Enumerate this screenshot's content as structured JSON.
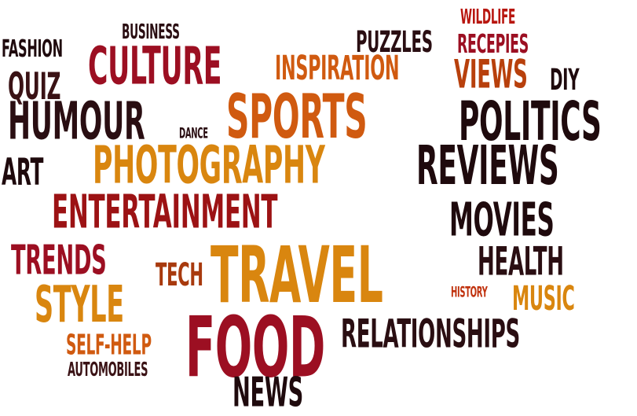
{
  "words": [
    {
      "text": "WILDLIFE",
      "color": "#b8160f"
    },
    {
      "text": "BUSINESS",
      "color": "#2a0e12"
    },
    {
      "text": "PUZZLES",
      "color": "#2a0e12"
    },
    {
      "text": "RECEPIES",
      "color": "#9c0f22"
    },
    {
      "text": "FASHION",
      "color": "#1f0a0d"
    },
    {
      "text": "CULTURE",
      "color": "#9c0f22"
    },
    {
      "text": "INSPIRATION",
      "color": "#d05a10"
    },
    {
      "text": "VIEWS",
      "color": "#b8400c"
    },
    {
      "text": "DIY",
      "color": "#1f0a0d"
    },
    {
      "text": "QUIZ",
      "color": "#3a1215"
    },
    {
      "text": "HUMOUR",
      "color": "#2a0e12"
    },
    {
      "text": "SPORTS",
      "color": "#d05a10"
    },
    {
      "text": "DANCE",
      "color": "#2a0e12"
    },
    {
      "text": "POLITICS",
      "color": "#1f0a0d"
    },
    {
      "text": "ART",
      "color": "#1f0a0d"
    },
    {
      "text": "PHOTOGRAPHY",
      "color": "#d9860f"
    },
    {
      "text": "REVIEWS",
      "color": "#1f0a0d"
    },
    {
      "text": "ENTERTAINMENT",
      "color": "#9c1214"
    },
    {
      "text": "MOVIES",
      "color": "#1f0a0d"
    },
    {
      "text": "TRENDS",
      "color": "#9c0f22"
    },
    {
      "text": "TECH",
      "color": "#a83a0e"
    },
    {
      "text": "TRAVEL",
      "color": "#d9860f"
    },
    {
      "text": "HEALTH",
      "color": "#2a0e12"
    },
    {
      "text": "HISTORY",
      "color": "#c0320e"
    },
    {
      "text": "STYLE",
      "color": "#d9860f"
    },
    {
      "text": "MUSIC",
      "color": "#d9860f"
    },
    {
      "text": "FOOD",
      "color": "#9c0f22"
    },
    {
      "text": "RELATIONSHIPS",
      "color": "#2a0e12"
    },
    {
      "text": "SELF-HELP",
      "color": "#d05a10"
    },
    {
      "text": "AUTOMOBILES",
      "color": "#3a1215"
    },
    {
      "text": "NEWS",
      "color": "#1f0a0d"
    }
  ]
}
